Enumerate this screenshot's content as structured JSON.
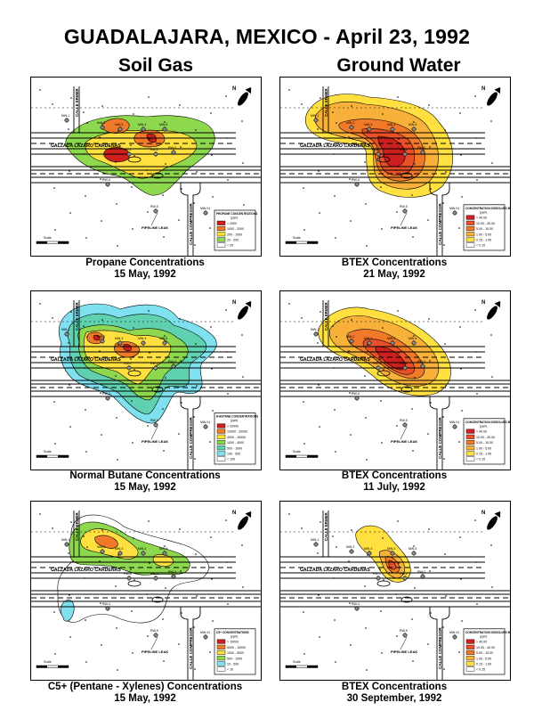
{
  "title": "GUADALAJARA, MEXICO - April 23, 1992",
  "columns": {
    "left": "Soil Gas",
    "right": "Ground Water"
  },
  "streets": {
    "calle_ermer": "CALLE ERMER",
    "calzada": "CALZADA LAZARO CARDENAS",
    "calle_compresor": "CALLE COMPRESOR",
    "pipeline": "PIPELINE LEAK"
  },
  "well_labels": [
    "MW-1",
    "MW-2",
    "MW-3",
    "MW-4",
    "MW-5",
    "RW-1",
    "RW-2",
    "RW-3",
    "RW-4",
    "RW-5",
    "MW-01"
  ],
  "panels": [
    {
      "id": "propane",
      "caption": "Propane Concentrations",
      "date": "15 May, 1992",
      "legend_title": "PROPANE CONCENTRATIONS",
      "legend_unit": "(ppm)",
      "legend": [
        {
          "label": "> 2000",
          "color": "#cc1f1f"
        },
        {
          "label": "1000 - 2000",
          "color": "#f07a2a"
        },
        {
          "label": "200 - 1000",
          "color": "#ffe040"
        },
        {
          "label": "20 - 200",
          "color": "#8ed84f"
        },
        {
          "label": "< 20",
          "color": "#ffffff"
        }
      ]
    },
    {
      "id": "btex-may",
      "caption": "BTEX Concentrations",
      "date": "21 May, 1992",
      "legend_title": "CONCENTRATION DISSOLVED BTEX",
      "legend_unit": "(ppm)",
      "legend": [
        {
          "label": "> 40.00",
          "color": "#cc1f1f"
        },
        {
          "label": "10.00 - 40.00",
          "color": "#e8502a"
        },
        {
          "label": "5.00 - 10.00",
          "color": "#f07a2a"
        },
        {
          "label": "1.00 - 5.00",
          "color": "#f7b13a"
        },
        {
          "label": "0.15 - 1.00",
          "color": "#ffe040"
        },
        {
          "label": "< 0.15",
          "color": "#ffffff"
        }
      ]
    },
    {
      "id": "butane",
      "caption": "Normal Butane Concentrations",
      "date": "15 May, 1992",
      "legend_title": "N-BUTANE CONCENTRATIONS",
      "legend_unit": "(ppm)",
      "legend": [
        {
          "label": "> 20000",
          "color": "#cc1f1f"
        },
        {
          "label": "10000 - 20000",
          "color": "#f07a2a"
        },
        {
          "label": "4000 - 10000",
          "color": "#ffe040"
        },
        {
          "label": "1000 - 4000",
          "color": "#8ed84f"
        },
        {
          "label": "500 - 1000",
          "color": "#5fd0b0"
        },
        {
          "label": "100 - 500",
          "color": "#7fe0f0"
        },
        {
          "label": "< 100",
          "color": "#ffffff"
        }
      ]
    },
    {
      "id": "btex-jul",
      "caption": "BTEX Concentrations",
      "date": "11 July, 1992",
      "legend_title": "CONCENTRATION DISSOLVED BTEX",
      "legend_unit": "(ppm)",
      "legend": [
        {
          "label": "> 40.00",
          "color": "#cc1f1f"
        },
        {
          "label": "10.00 - 40.00",
          "color": "#e8502a"
        },
        {
          "label": "5.00 - 10.00",
          "color": "#f07a2a"
        },
        {
          "label": "1.00 - 5.00",
          "color": "#f7b13a"
        },
        {
          "label": "0.15 - 1.00",
          "color": "#ffe040"
        },
        {
          "label": "< 0.15",
          "color": "#ffffff"
        }
      ]
    },
    {
      "id": "c5",
      "caption": "C5+ (Pentane - Xylenes) Concentrations",
      "date": "15 May, 1992",
      "legend_title": "C5+ CONCENTRATIONS",
      "legend_unit": "(ppm)",
      "legend": [
        {
          "label": "> 10000",
          "color": "#cc1f1f"
        },
        {
          "label": "5000 - 10000",
          "color": "#f07a2a"
        },
        {
          "label": "1000 - 5000",
          "color": "#ffe040"
        },
        {
          "label": "500 - 1000",
          "color": "#8ed84f"
        },
        {
          "label": "10 - 500",
          "color": "#7fe0f0"
        },
        {
          "label": "< 10",
          "color": "#ffffff"
        }
      ]
    },
    {
      "id": "btex-sep",
      "caption": "BTEX Concentrations",
      "date": "30 September, 1992",
      "legend_title": "CONCENTRATION DISSOLVED BTEX",
      "legend_unit": "(ppm)",
      "legend": [
        {
          "label": "> 40.00",
          "color": "#cc1f1f"
        },
        {
          "label": "10.00 - 40.00",
          "color": "#e8502a"
        },
        {
          "label": "5.00 - 10.00",
          "color": "#f07a2a"
        },
        {
          "label": "1.00 - 5.00",
          "color": "#f7b13a"
        },
        {
          "label": "0.15 - 1.00",
          "color": "#ffe040"
        },
        {
          "label": "< 0.15",
          "color": "#ffffff"
        }
      ]
    }
  ],
  "scale_label": "Scale",
  "north_label": "N"
}
